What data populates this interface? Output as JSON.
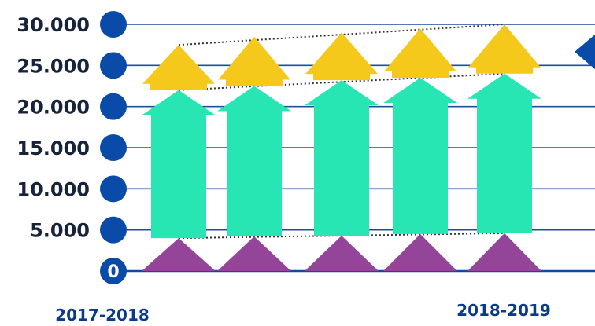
{
  "chart_data": {
    "type": "bar",
    "title": "",
    "xlabel": "",
    "ylabel": "",
    "ylim": [
      0,
      30000
    ],
    "grid": true,
    "legend": "none",
    "y_tick_labels": [
      "0",
      "5.000",
      "10.000",
      "15.000",
      "20.000",
      "25.000",
      "30.000"
    ],
    "y_ticks": [
      0,
      5000,
      10000,
      15000,
      20000,
      25000,
      30000
    ],
    "categories": [
      "2017-2018",
      "",
      "",
      "",
      "2018-2019"
    ],
    "series": [
      {
        "values": [
          4000,
          4200,
          4300,
          4500,
          4600
        ]
      },
      {
        "values": [
          22000,
          22500,
          23200,
          23500,
          24000
        ]
      },
      {
        "values": [
          27500,
          28500,
          29000,
          29500,
          30000
        ]
      }
    ],
    "colors": {
      "series": [
        "#944599",
        "#28e6b4",
        "#f5c91c"
      ],
      "axis": "#0a4aa8",
      "gridline": "#1b4f9e",
      "tick_text": "#17233b",
      "x_tick_text": "#0a3a8a",
      "trend_line": "#333333",
      "side_marker": "#0a4aa8"
    },
    "icons": {
      "bottom": "triangle",
      "middle": "arrow-up",
      "top": "house-roof",
      "side": "diamond"
    }
  }
}
